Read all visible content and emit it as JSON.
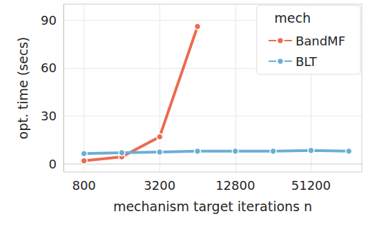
{
  "chart_data": {
    "type": "line",
    "x_label": "mechanism target iterations n",
    "y_label": "opt. time (secs)",
    "legend_title": "mech",
    "log": "x",
    "grid": true,
    "legend": "upper right",
    "marker": "circle",
    "xlim": [
      550,
      130000
    ],
    "xticks": [
      800,
      3200,
      12800,
      51200
    ],
    "ylim": [
      -5,
      100
    ],
    "yticks": [
      0,
      30,
      60,
      90
    ],
    "series": [
      {
        "name": "BandMF",
        "color": "#ee6a4e",
        "x": [
          800,
          1600,
          3200,
          6400
        ],
        "values": [
          2,
          4.5,
          17,
          86
        ]
      },
      {
        "name": "BLT",
        "color": "#6aaed6",
        "x": [
          800,
          1600,
          3200,
          6400,
          12800,
          25600,
          51200,
          102400
        ],
        "values": [
          6.5,
          7,
          7.5,
          8,
          8,
          8,
          8.5,
          8
        ]
      }
    ]
  }
}
